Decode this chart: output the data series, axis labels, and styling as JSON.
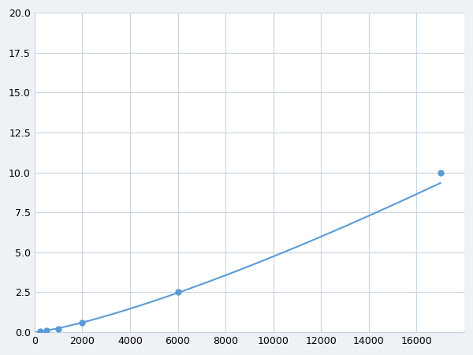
{
  "x": [
    250,
    500,
    1000,
    2000,
    6000,
    17000
  ],
  "y": [
    0.05,
    0.1,
    0.2,
    0.6,
    2.5,
    10.0
  ],
  "line_color": "#5b9bd5",
  "marker_color": "#5b9bd5",
  "marker_size": 5,
  "line_width": 1.5,
  "xlim": [
    0,
    18000
  ],
  "ylim": [
    0,
    20.0
  ],
  "xticks": [
    0,
    2000,
    4000,
    6000,
    8000,
    10000,
    12000,
    14000,
    16000
  ],
  "yticks": [
    0.0,
    2.5,
    5.0,
    7.5,
    10.0,
    12.5,
    15.0,
    17.5,
    20.0
  ],
  "grid_color": "#c8d4e0",
  "background_color": "#ffffff",
  "figure_background": "#eef2f7"
}
